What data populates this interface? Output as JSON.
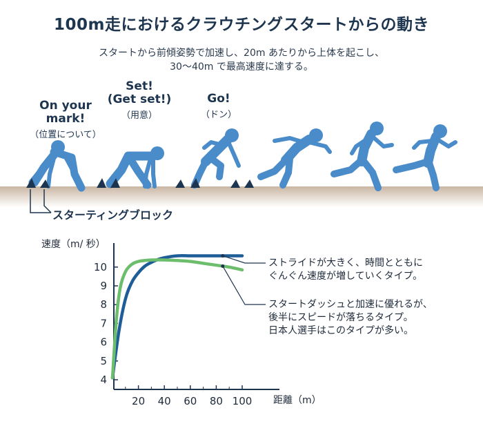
{
  "header": {
    "title": "100m走におけるクラウチングスタートからの動き",
    "subtitle_line1": "スタートから前傾姿勢で加速し、20m あたりから上体を起こし、",
    "subtitle_line2": "30〜40m で最高速度に達する。"
  },
  "commands": [
    {
      "en_line1": "On your",
      "en_line2": "mark!",
      "jp": "（位置について）"
    },
    {
      "en_line1": "Set!",
      "en_line2": "(Get set!)",
      "jp": "（用意）"
    },
    {
      "en_line1": "Go!",
      "en_line2": "",
      "jp": "（ドン）"
    }
  ],
  "block_label": "スターティングブロック",
  "colors": {
    "figure": "#4a8bc9",
    "block": "#1e3550",
    "dark_series": "#1f5d99",
    "green_series": "#6cbd6c",
    "ground": "#c9b6a3"
  },
  "annotations": {
    "dark_line1": "ストライドが大きく、時間とともに",
    "dark_line2": "ぐんぐん速度が増していくタイプ。",
    "green_line1": "スタートダッシュと加速に優れるが、",
    "green_line2": "後半にスピードが落ちるタイプ。",
    "green_line3": "日本人選手はこのタイプが多い。"
  },
  "chart_data": {
    "type": "line",
    "ylabel": "速度（m/ 秒）",
    "xlabel": "距離（m）",
    "xlim": [
      0,
      110
    ],
    "ylim": [
      3.5,
      11.2
    ],
    "xticks": [
      20,
      40,
      60,
      80,
      100
    ],
    "yticks": [
      4,
      5,
      6,
      7,
      8,
      9,
      10
    ],
    "grid": false,
    "legend": "none",
    "series": [
      {
        "color": "#1f5d99",
        "x": [
          0,
          5,
          10,
          15,
          20,
          25,
          30,
          35,
          40,
          50,
          60,
          70,
          80,
          90,
          100
        ],
        "y": [
          4.1,
          6.6,
          8.3,
          9.2,
          9.7,
          10.05,
          10.25,
          10.4,
          10.5,
          10.6,
          10.6,
          10.6,
          10.6,
          10.6,
          10.6
        ]
      },
      {
        "color": "#6cbd6c",
        "x": [
          0,
          3,
          6,
          10,
          15,
          20,
          25,
          30,
          40,
          50,
          60,
          70,
          80,
          90,
          100
        ],
        "y": [
          4.1,
          7.2,
          8.9,
          9.75,
          10.15,
          10.3,
          10.35,
          10.38,
          10.38,
          10.35,
          10.3,
          10.2,
          10.1,
          10.0,
          9.85
        ]
      }
    ]
  }
}
